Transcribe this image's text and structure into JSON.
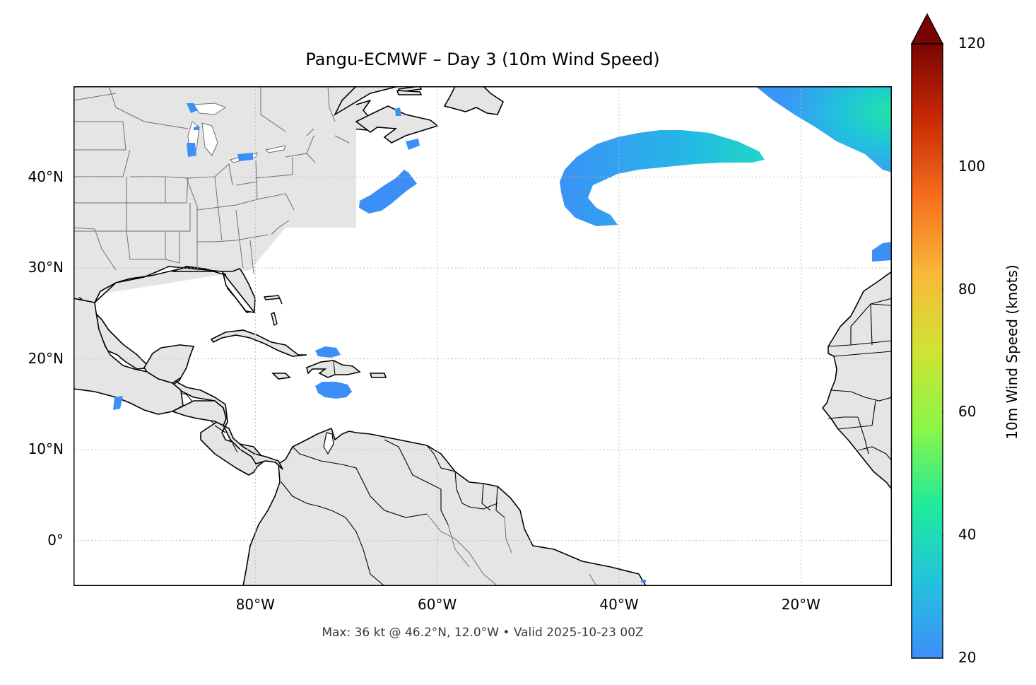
{
  "title": "Pangu-ECMWF – Day 3 (10m Wind Speed)",
  "footer": "Max: 36 kt @ 46.2°N, 12.0°W • Valid 2025-10-23 00Z",
  "map": {
    "extent": {
      "lon_min": -100,
      "lon_max": -10,
      "lat_min": -5,
      "lat_max": 50
    },
    "lat_ticks": [
      {
        "value": 40,
        "label": "40°N"
      },
      {
        "value": 30,
        "label": "30°N"
      },
      {
        "value": 20,
        "label": "20°N"
      },
      {
        "value": 10,
        "label": "10°N"
      },
      {
        "value": 0,
        "label": "0°"
      }
    ],
    "lon_ticks": [
      {
        "value": -80,
        "label": "80°W"
      },
      {
        "value": -60,
        "label": "60°W"
      },
      {
        "value": -40,
        "label": "40°W"
      },
      {
        "value": -20,
        "label": "20°W"
      }
    ],
    "colors": {
      "land": "#e5e5e5",
      "ocean": "#ffffff",
      "coast": "#000000",
      "border": "#707070",
      "grid": "#bdbdbd"
    }
  },
  "colorbar": {
    "label": "10m Wind Speed (knots)",
    "min": 20,
    "max": 120,
    "ticks": [
      {
        "value": 120,
        "label": "120"
      },
      {
        "value": 100,
        "label": "100"
      },
      {
        "value": 80,
        "label": "80"
      },
      {
        "value": 60,
        "label": "60"
      },
      {
        "value": 40,
        "label": "40"
      },
      {
        "value": 20,
        "label": "20"
      }
    ],
    "colormap": [
      "#3e8ef8",
      "#22c3dd",
      "#20eb9a",
      "#8bf646",
      "#cfe333",
      "#f9b938",
      "#f56f1d",
      "#c92b05",
      "#7a0403"
    ],
    "extend": "max"
  }
}
